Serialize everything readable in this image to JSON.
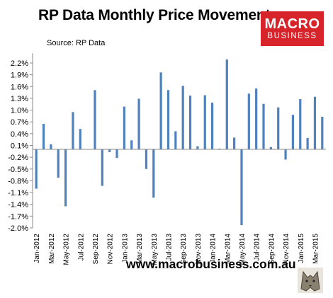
{
  "header": {
    "title": "RP Data Monthly Price Movements",
    "source": "Source: RP Data"
  },
  "logo": {
    "line1": "MACRO",
    "line2": "BUSINESS"
  },
  "footer": {
    "url": "www.macrobusiness.com.au"
  },
  "colors": {
    "bar": "#4f81bd",
    "logo_bg": "#d7242b"
  },
  "chart_data": {
    "type": "bar",
    "title": "RP Data Monthly Price Movements",
    "xlabel": "",
    "ylabel": "",
    "ylim": [
      -2.0,
      2.45
    ],
    "grid": false,
    "y_ticks": [
      2.2,
      1.9,
      1.6,
      1.3,
      1.0,
      0.7,
      0.4,
      0.1,
      -0.2,
      -0.5,
      -0.8,
      -1.1,
      -1.4,
      -1.7,
      -2.0
    ],
    "y_tick_labels": [
      "2.2%",
      "1.9%",
      "1.6%",
      "1.3%",
      "1.0%",
      "0.7%",
      "0.4%",
      "0.1%",
      "-0.2%",
      "-0.5%",
      "-0.8%",
      "-1.1%",
      "-1.4%",
      "-1.7%",
      "-2.0%"
    ],
    "x_tick_labels": [
      "Jan-2012",
      "Mar-2012",
      "May-2012",
      "Jul-2012",
      "Sep-2012",
      "Nov-2012",
      "Jan-2013",
      "Mar-2013",
      "May-2013",
      "Jul-2013",
      "Sep-2013",
      "Nov-2013",
      "Jan-2014",
      "Mar-2014",
      "May-2014",
      "Jul-2014",
      "Sep-2014",
      "Nov-2014",
      "Jan-2015",
      "Mar-2015"
    ],
    "categories": [
      "Jan-2012",
      "Feb-2012",
      "Mar-2012",
      "Apr-2012",
      "May-2012",
      "Jun-2012",
      "Jul-2012",
      "Aug-2012",
      "Sep-2012",
      "Oct-2012",
      "Nov-2012",
      "Dec-2012",
      "Jan-2013",
      "Feb-2013",
      "Mar-2013",
      "Apr-2013",
      "May-2013",
      "Jun-2013",
      "Jul-2013",
      "Aug-2013",
      "Sep-2013",
      "Oct-2013",
      "Nov-2013",
      "Dec-2013",
      "Jan-2014",
      "Feb-2014",
      "Mar-2014",
      "Apr-2014",
      "May-2014",
      "Jun-2014",
      "Jul-2014",
      "Aug-2014",
      "Sep-2014",
      "Oct-2014",
      "Nov-2014",
      "Dec-2014",
      "Jan-2015",
      "Feb-2015",
      "Mar-2015",
      "Apr-2015"
    ],
    "values": [
      -1.0,
      0.65,
      0.13,
      -0.72,
      -1.45,
      0.95,
      0.52,
      0.0,
      1.51,
      -0.93,
      -0.07,
      -0.22,
      1.09,
      0.23,
      1.29,
      -0.5,
      -1.23,
      1.96,
      1.51,
      0.46,
      1.62,
      1.37,
      0.08,
      1.38,
      1.19,
      0.02,
      2.29,
      0.3,
      -1.93,
      1.42,
      1.55,
      1.16,
      0.06,
      1.07,
      -0.26,
      0.88,
      1.28,
      0.29,
      1.34,
      0.83
    ]
  }
}
